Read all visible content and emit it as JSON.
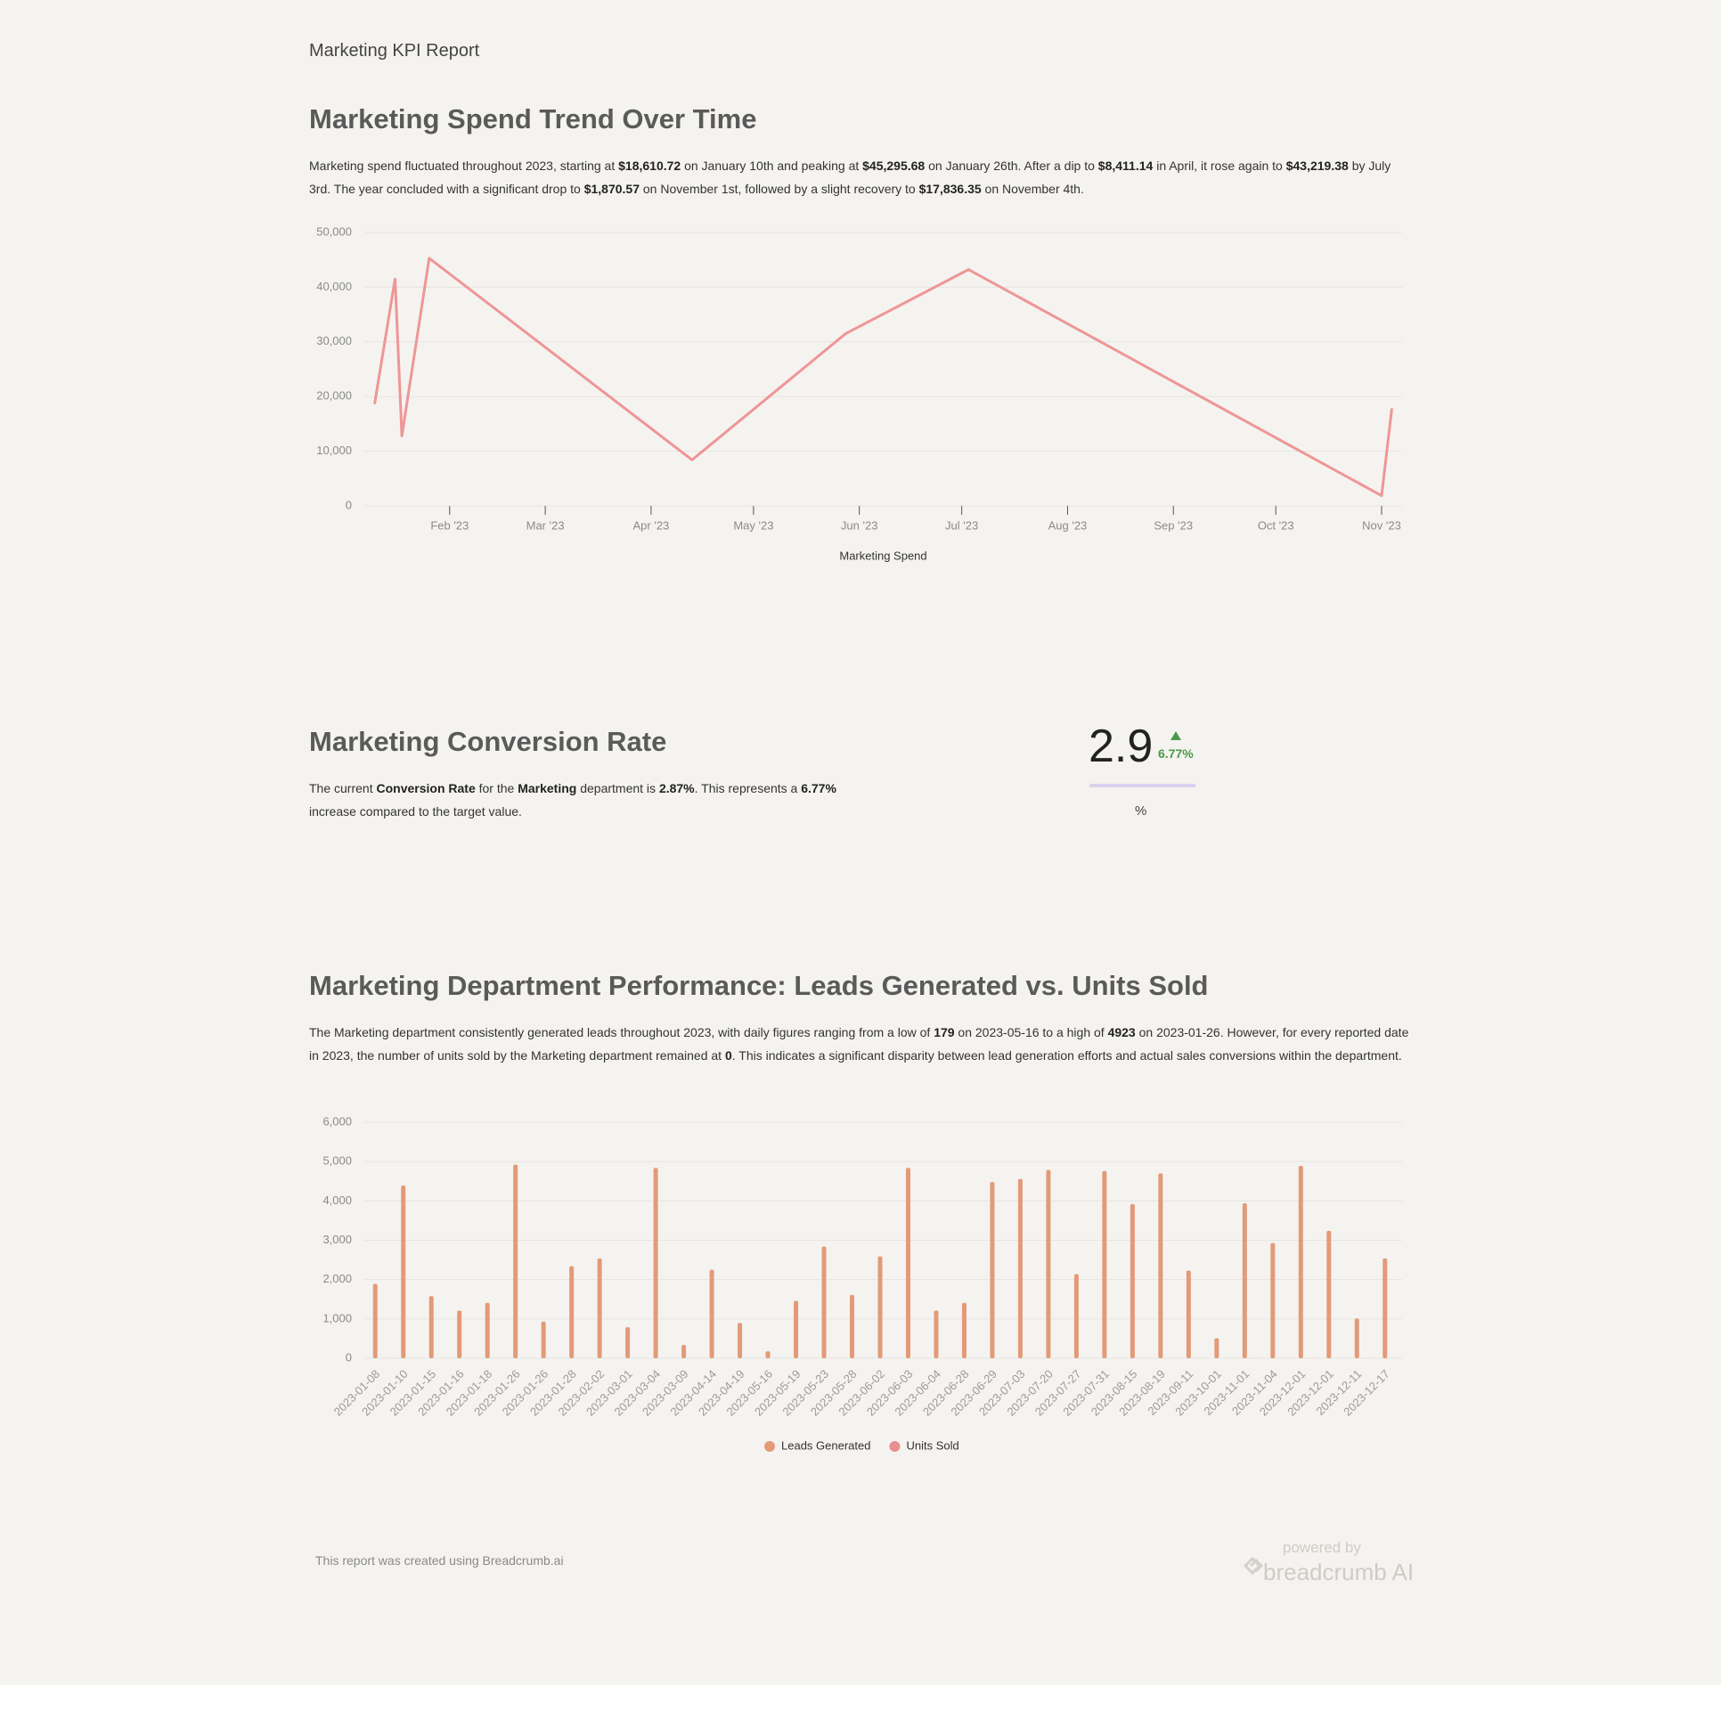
{
  "header": {
    "title": "Marketing KPI Report"
  },
  "sections": [
    {
      "title": "Marketing Spend Trend Over Time",
      "paragraph": [
        {
          "text": "Marketing spend fluctuated throughout 2023, starting at ",
          "bold": false
        },
        {
          "text": "$18,610.72",
          "bold": true
        },
        {
          "text": " on January 10th and peaking at ",
          "bold": false
        },
        {
          "text": "$45,295.68",
          "bold": true
        },
        {
          "text": " on January 26th. After a dip to ",
          "bold": false
        },
        {
          "text": "$8,411.14",
          "bold": true
        },
        {
          "text": " in April, it rose again to ",
          "bold": false
        },
        {
          "text": "$43,219.38",
          "bold": true
        },
        {
          "text": " by July 3rd. The year concluded with a significant drop to ",
          "bold": false
        },
        {
          "text": "$1,870.57",
          "bold": true
        },
        {
          "text": " on November 1st, followed by a slight recovery to ",
          "bold": false
        },
        {
          "text": "$17,836.35",
          "bold": true
        },
        {
          "text": " on November 4th.",
          "bold": false
        }
      ]
    },
    {
      "title": "Marketing Conversion Rate",
      "paragraph": [
        {
          "text": "The current ",
          "bold": false
        },
        {
          "text": "Conversion Rate",
          "bold": true
        },
        {
          "text": " for the ",
          "bold": false
        },
        {
          "text": "Marketing",
          "bold": true
        },
        {
          "text": " department is ",
          "bold": false
        },
        {
          "text": "2.87%",
          "bold": true
        },
        {
          "text": ". This represents a ",
          "bold": false
        },
        {
          "text": "6.77%",
          "bold": true
        },
        {
          "text": " increase compared to the target value.",
          "bold": false
        }
      ]
    },
    {
      "title": "Marketing Department Performance: Leads Generated vs. Units Sold",
      "paragraph": [
        {
          "text": "The Marketing department consistently generated leads throughout 2023, with daily figures ranging from a low of ",
          "bold": false
        },
        {
          "text": "179",
          "bold": true
        },
        {
          "text": " on 2023-05-16 to a high of ",
          "bold": false
        },
        {
          "text": "4923",
          "bold": true
        },
        {
          "text": " on 2023-01-26. However, for every reported date in 2023, the number of units sold by the Marketing department remained at ",
          "bold": false
        },
        {
          "text": "0",
          "bold": true
        },
        {
          "text": ". This indicates a significant disparity between lead generation efforts and actual sales conversions within the department.",
          "bold": false
        }
      ]
    }
  ],
  "kpi": {
    "value": "2.9",
    "delta": "6.77%",
    "unit": "%",
    "delta_color": "#4a9a4a"
  },
  "chart_data": [
    {
      "type": "line",
      "x": [
        "2023-01-10",
        "2023-01-16",
        "2023-01-18",
        "2023-01-26",
        "2023-04-13",
        "2023-05-28",
        "2023-07-03",
        "2023-11-01",
        "2023-11-04"
      ],
      "series": [
        {
          "name": "Marketing Spend",
          "color": "#ee9696",
          "values": [
            18610.72,
            41500,
            12800,
            45295.68,
            8411.14,
            31500,
            43219.38,
            1870.57,
            17836.35
          ]
        }
      ],
      "xlim": [
        "2023-01-07",
        "2023-11-07"
      ],
      "xticks": [
        {
          "value": "2023-02-01",
          "label": "Feb '23"
        },
        {
          "value": "2023-03-01",
          "label": "Mar '23"
        },
        {
          "value": "2023-04-01",
          "label": "Apr '23"
        },
        {
          "value": "2023-05-01",
          "label": "May '23"
        },
        {
          "value": "2023-06-01",
          "label": "Jun '23"
        },
        {
          "value": "2023-07-01",
          "label": "Jul '23"
        },
        {
          "value": "2023-08-01",
          "label": "Aug '23"
        },
        {
          "value": "2023-09-01",
          "label": "Sep '23"
        },
        {
          "value": "2023-10-01",
          "label": "Oct '23"
        },
        {
          "value": "2023-11-01",
          "label": "Nov '23"
        }
      ],
      "ylim": [
        0,
        50000
      ],
      "yticks": [
        0,
        {
          "value": 10000,
          "label": "10,000"
        },
        {
          "value": 20000,
          "label": "20,000"
        },
        {
          "value": 30000,
          "label": "30,000"
        },
        {
          "value": 40000,
          "label": "40,000"
        },
        {
          "value": 50000,
          "label": "50,000"
        }
      ],
      "grid": true
    },
    {
      "type": "bar",
      "categories": [
        "2023-01-08",
        "2023-01-10",
        "2023-01-15",
        "2023-01-16",
        "2023-01-18",
        "2023-01-26",
        "2023-01-26",
        "2023-01-28",
        "2023-02-02",
        "2023-03-01",
        "2023-03-04",
        "2023-03-09",
        "2023-04-14",
        "2023-04-19",
        "2023-05-16",
        "2023-05-19",
        "2023-05-23",
        "2023-05-28",
        "2023-06-02",
        "2023-06-03",
        "2023-06-04",
        "2023-06-28",
        "2023-06-29",
        "2023-07-03",
        "2023-07-20",
        "2023-07-27",
        "2023-07-31",
        "2023-08-15",
        "2023-08-19",
        "2023-09-11",
        "2023-10-01",
        "2023-11-01",
        "2023-11-04",
        "2023-12-01",
        "2023-12-01",
        "2023-12-11",
        "2023-12-17"
      ],
      "series": [
        {
          "name": "Leads Generated",
          "color": "#e39a78",
          "values": [
            1890,
            4390,
            1580,
            1210,
            1410,
            4923,
            930,
            2340,
            2540,
            790,
            4840,
            340,
            2250,
            900,
            179,
            1460,
            2840,
            1610,
            2590,
            4840,
            1210,
            1410,
            4480,
            4560,
            4790,
            2140,
            4760,
            3920,
            4700,
            2230,
            510,
            3940,
            2930,
            4890,
            3240,
            1010,
            2540
          ]
        },
        {
          "name": "Units Sold",
          "color": "#e88f8f",
          "values": [
            0,
            0,
            0,
            0,
            0,
            0,
            0,
            0,
            0,
            0,
            0,
            0,
            0,
            0,
            0,
            0,
            0,
            0,
            0,
            0,
            0,
            0,
            0,
            0,
            0,
            0,
            0,
            0,
            0,
            0,
            0,
            0,
            0,
            0,
            0,
            0,
            0
          ]
        }
      ],
      "ylim": [
        0,
        6000
      ],
      "yticks": [
        0,
        {
          "value": 1000,
          "label": "1,000"
        },
        {
          "value": 2000,
          "label": "2,000"
        },
        {
          "value": 3000,
          "label": "3,000"
        },
        {
          "value": 4000,
          "label": "4,000"
        },
        {
          "value": 5000,
          "label": "5,000"
        },
        {
          "value": 6000,
          "label": "6,000"
        }
      ],
      "grid": true,
      "legend": "bottom"
    }
  ],
  "footer": {
    "note": "This report was created using Breadcrumb.ai",
    "powered_by": "powered by",
    "brand": "breadcrumb AI"
  }
}
